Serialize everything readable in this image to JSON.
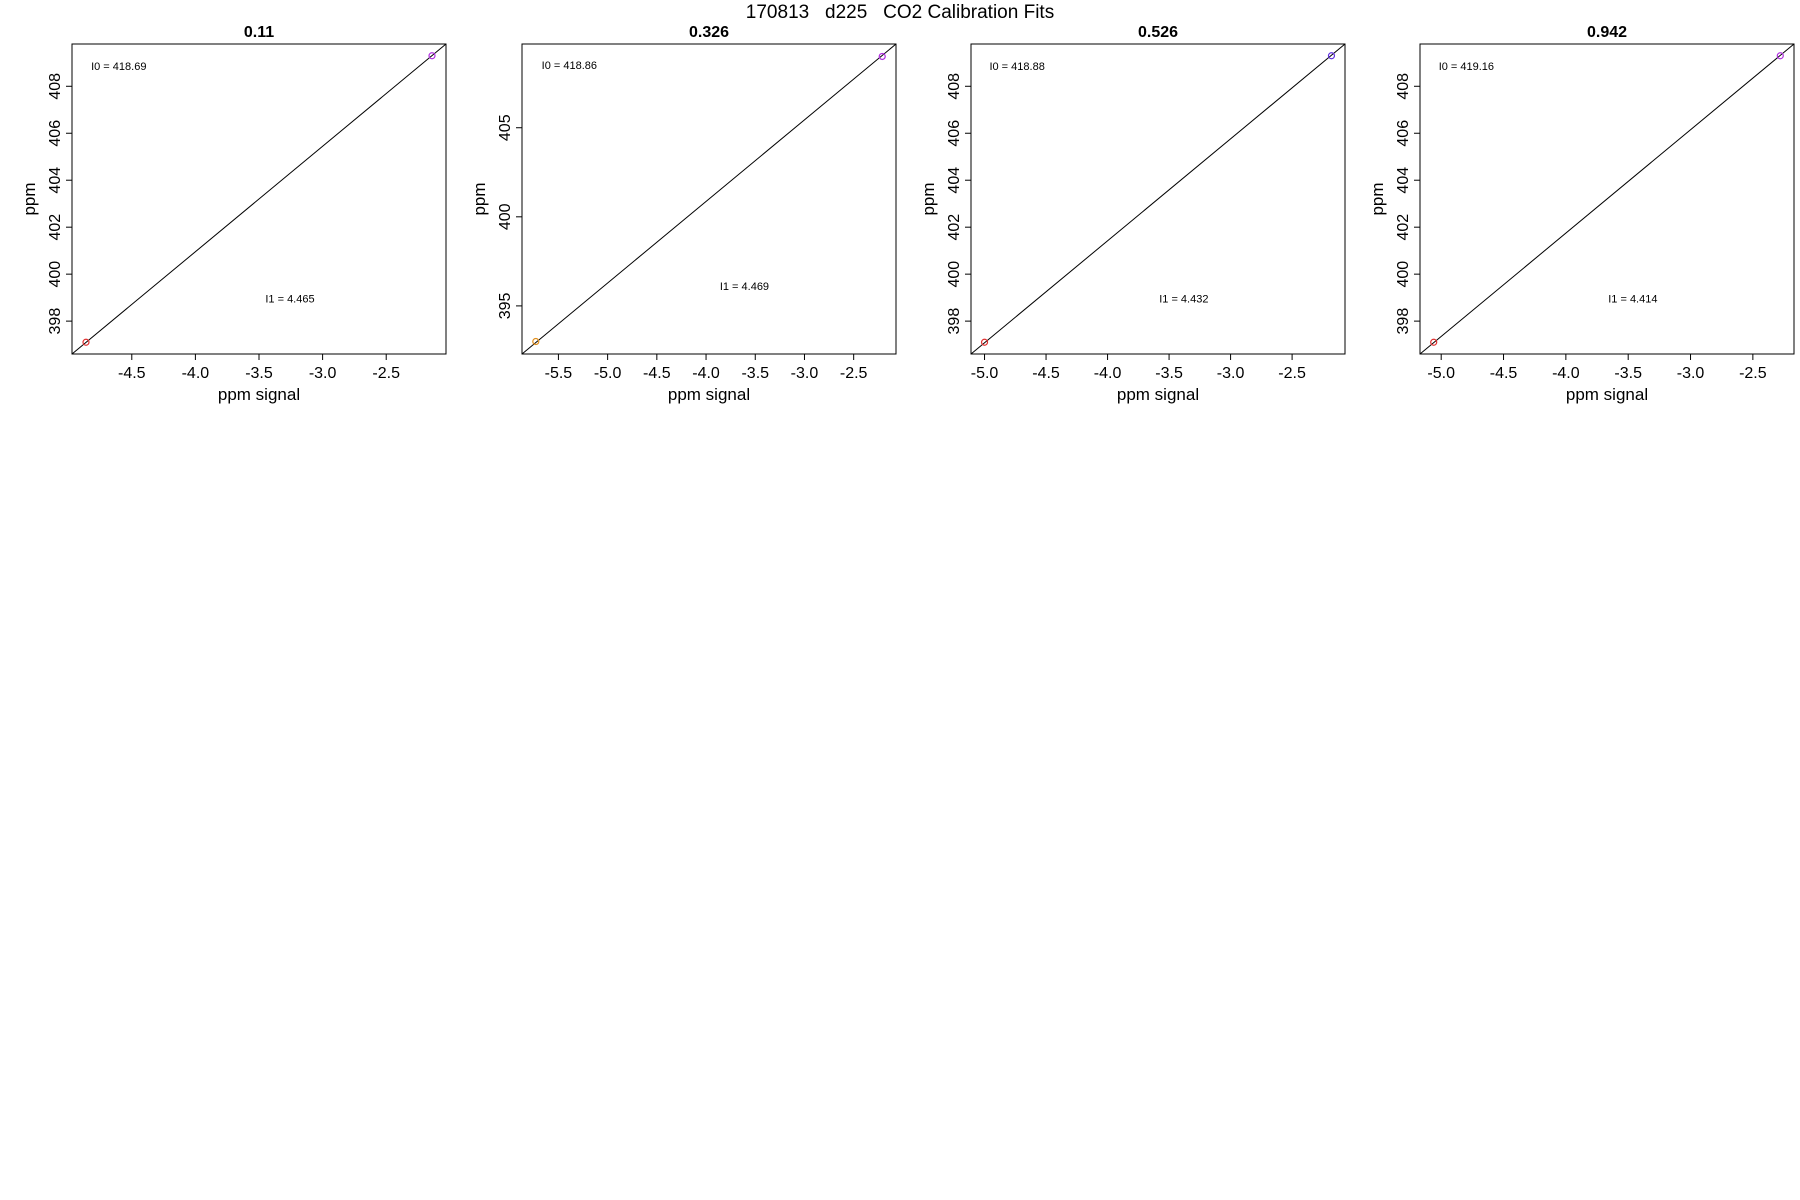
{
  "page": {
    "title": "170813   d225   CO2 Calibration Fits"
  },
  "chart_data": [
    {
      "type": "scatter",
      "title": "0.11",
      "xlabel": "ppm signal",
      "ylabel": "ppm",
      "xlim": [
        -4.97,
        -2.03
      ],
      "ylim": [
        396.6,
        409.8
      ],
      "xticks": [
        -4.5,
        -4.0,
        -3.5,
        -3.0,
        -2.5
      ],
      "xtick_labels": [
        "-4.5",
        "-4.0",
        "-3.5",
        "-3.0",
        "-2.5"
      ],
      "yticks": [
        398,
        400,
        402,
        404,
        406,
        408
      ],
      "ytick_labels": [
        "398",
        "400",
        "402",
        "404",
        "406",
        "408"
      ],
      "points": [
        {
          "x": -4.86,
          "y": 397.1,
          "color": "#e03030"
        },
        {
          "x": -2.14,
          "y": 409.3,
          "color": "#b030e0"
        }
      ],
      "fit_line": {
        "x": [
          -4.97,
          -2.03
        ],
        "y": [
          396.6,
          409.8
        ]
      },
      "annotations": [
        {
          "text": "I0 =  418.69",
          "x": -4.82,
          "y": 408.7
        },
        {
          "text": "I1 =  4.465",
          "x": -3.45,
          "y": 398.8
        }
      ],
      "grid": false,
      "legend": "none"
    },
    {
      "type": "scatter",
      "title": "0.326",
      "xlabel": "ppm signal",
      "ylabel": "ppm",
      "xlim": [
        -5.87,
        -2.07
      ],
      "ylim": [
        392.3,
        409.7
      ],
      "xticks": [
        -5.5,
        -5.0,
        -4.5,
        -4.0,
        -3.5,
        -3.0,
        -2.5
      ],
      "xtick_labels": [
        "-5.5",
        "-5.0",
        "-4.5",
        "-4.0",
        "-3.5",
        "-3.0",
        "-2.5"
      ],
      "yticks": [
        395,
        400,
        405
      ],
      "ytick_labels": [
        "395",
        "400",
        "405"
      ],
      "points": [
        {
          "x": -5.73,
          "y": 393.0,
          "color": "#e09020"
        },
        {
          "x": -2.21,
          "y": 409.0,
          "color": "#b030e0"
        }
      ],
      "fit_line": {
        "x": [
          -5.87,
          -2.07
        ],
        "y": [
          392.3,
          409.7
        ]
      },
      "annotations": [
        {
          "text": "I0 =  418.86",
          "x": -5.67,
          "y": 408.3
        },
        {
          "text": "I1 =  4.469",
          "x": -3.86,
          "y": 395.9
        }
      ],
      "grid": false,
      "legend": "none"
    },
    {
      "type": "scatter",
      "title": "0.526",
      "xlabel": "ppm signal",
      "ylabel": "ppm",
      "xlim": [
        -5.11,
        -2.07
      ],
      "ylim": [
        396.6,
        409.8
      ],
      "xticks": [
        -5.0,
        -4.5,
        -4.0,
        -3.5,
        -3.0,
        -2.5
      ],
      "xtick_labels": [
        "-5.0",
        "-4.5",
        "-4.0",
        "-3.5",
        "-3.0",
        "-2.5"
      ],
      "yticks": [
        398,
        400,
        402,
        404,
        406,
        408
      ],
      "ytick_labels": [
        "398",
        "400",
        "402",
        "404",
        "406",
        "408"
      ],
      "points": [
        {
          "x": -5.0,
          "y": 397.1,
          "color": "#e03030"
        },
        {
          "x": -2.18,
          "y": 409.3,
          "color": "#6030e0"
        }
      ],
      "fit_line": {
        "x": [
          -5.11,
          -2.07
        ],
        "y": [
          396.6,
          409.8
        ]
      },
      "annotations": [
        {
          "text": "I0 =  418.88",
          "x": -4.96,
          "y": 408.7
        },
        {
          "text": "I1 =  4.432",
          "x": -3.58,
          "y": 398.8
        }
      ],
      "grid": false,
      "legend": "none"
    },
    {
      "type": "scatter",
      "title": "0.942",
      "xlabel": "ppm signal",
      "ylabel": "ppm",
      "xlim": [
        -5.17,
        -2.17
      ],
      "ylim": [
        396.6,
        409.8
      ],
      "xticks": [
        -5.0,
        -4.5,
        -4.0,
        -3.5,
        -3.0,
        -2.5
      ],
      "xtick_labels": [
        "-5.0",
        "-4.5",
        "-4.0",
        "-3.5",
        "-3.0",
        "-2.5"
      ],
      "yticks": [
        398,
        400,
        402,
        404,
        406,
        408
      ],
      "ytick_labels": [
        "398",
        "400",
        "402",
        "404",
        "406",
        "408"
      ],
      "points": [
        {
          "x": -5.06,
          "y": 397.1,
          "color": "#e03030"
        },
        {
          "x": -2.28,
          "y": 409.3,
          "color": "#b030e0"
        }
      ],
      "fit_line": {
        "x": [
          -5.17,
          -2.17
        ],
        "y": [
          396.6,
          409.8
        ]
      },
      "annotations": [
        {
          "text": "I0 =  419.16",
          "x": -5.02,
          "y": 408.7
        },
        {
          "text": "I1 =  4.414",
          "x": -3.66,
          "y": 398.8
        }
      ],
      "grid": false,
      "legend": "none"
    }
  ]
}
